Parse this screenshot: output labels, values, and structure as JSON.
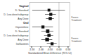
{
  "chart_data": {
    "type": "forest",
    "xlabel": "Standardized Mean Difference (95% CI)",
    "categories": [
      "Vaginal",
      "D. Standard",
      "D. Low-dose/subgroup",
      "Any Dose",
      "Oral",
      "Ospemifene",
      "D. Standard",
      "D. Low-dose/subgroup",
      "Any Dose",
      "Isoflavones"
    ],
    "headers": [
      true,
      false,
      false,
      false,
      true,
      false,
      false,
      false,
      false,
      false
    ],
    "values": [
      null,
      -0.55,
      -0.45,
      -0.48,
      null,
      -0.88,
      -0.62,
      -0.55,
      -0.65,
      -0.38
    ],
    "ci_lo": [
      null,
      -1.45,
      -0.75,
      -0.7,
      null,
      -1.45,
      -0.95,
      -0.8,
      -0.95,
      -0.65
    ],
    "ci_hi": [
      null,
      0.35,
      -0.15,
      -0.26,
      null,
      -0.31,
      -0.29,
      -0.3,
      -0.35,
      -0.11
    ],
    "sizes": [
      null,
      3.0,
      3.5,
      4.0,
      null,
      3.5,
      4.5,
      4.0,
      5.5,
      3.5
    ],
    "annotations": [
      null,
      null,
      null,
      "Favors\nTreatment",
      null,
      null,
      null,
      null,
      "Favors\nTreatment",
      null
    ],
    "xlim": [
      -1.6,
      0.6
    ],
    "xticks": [
      {
        "value": -1.5,
        "label": "-1.50"
      },
      {
        "value": -1.0,
        "label": "-1.00"
      },
      {
        "value": -0.5,
        "label": "-0.50"
      },
      {
        "value": 0.0,
        "label": "0.00"
      },
      {
        "value": 0.5,
        "label": "0.50"
      }
    ],
    "vline": 0.0,
    "color": "#111111"
  }
}
